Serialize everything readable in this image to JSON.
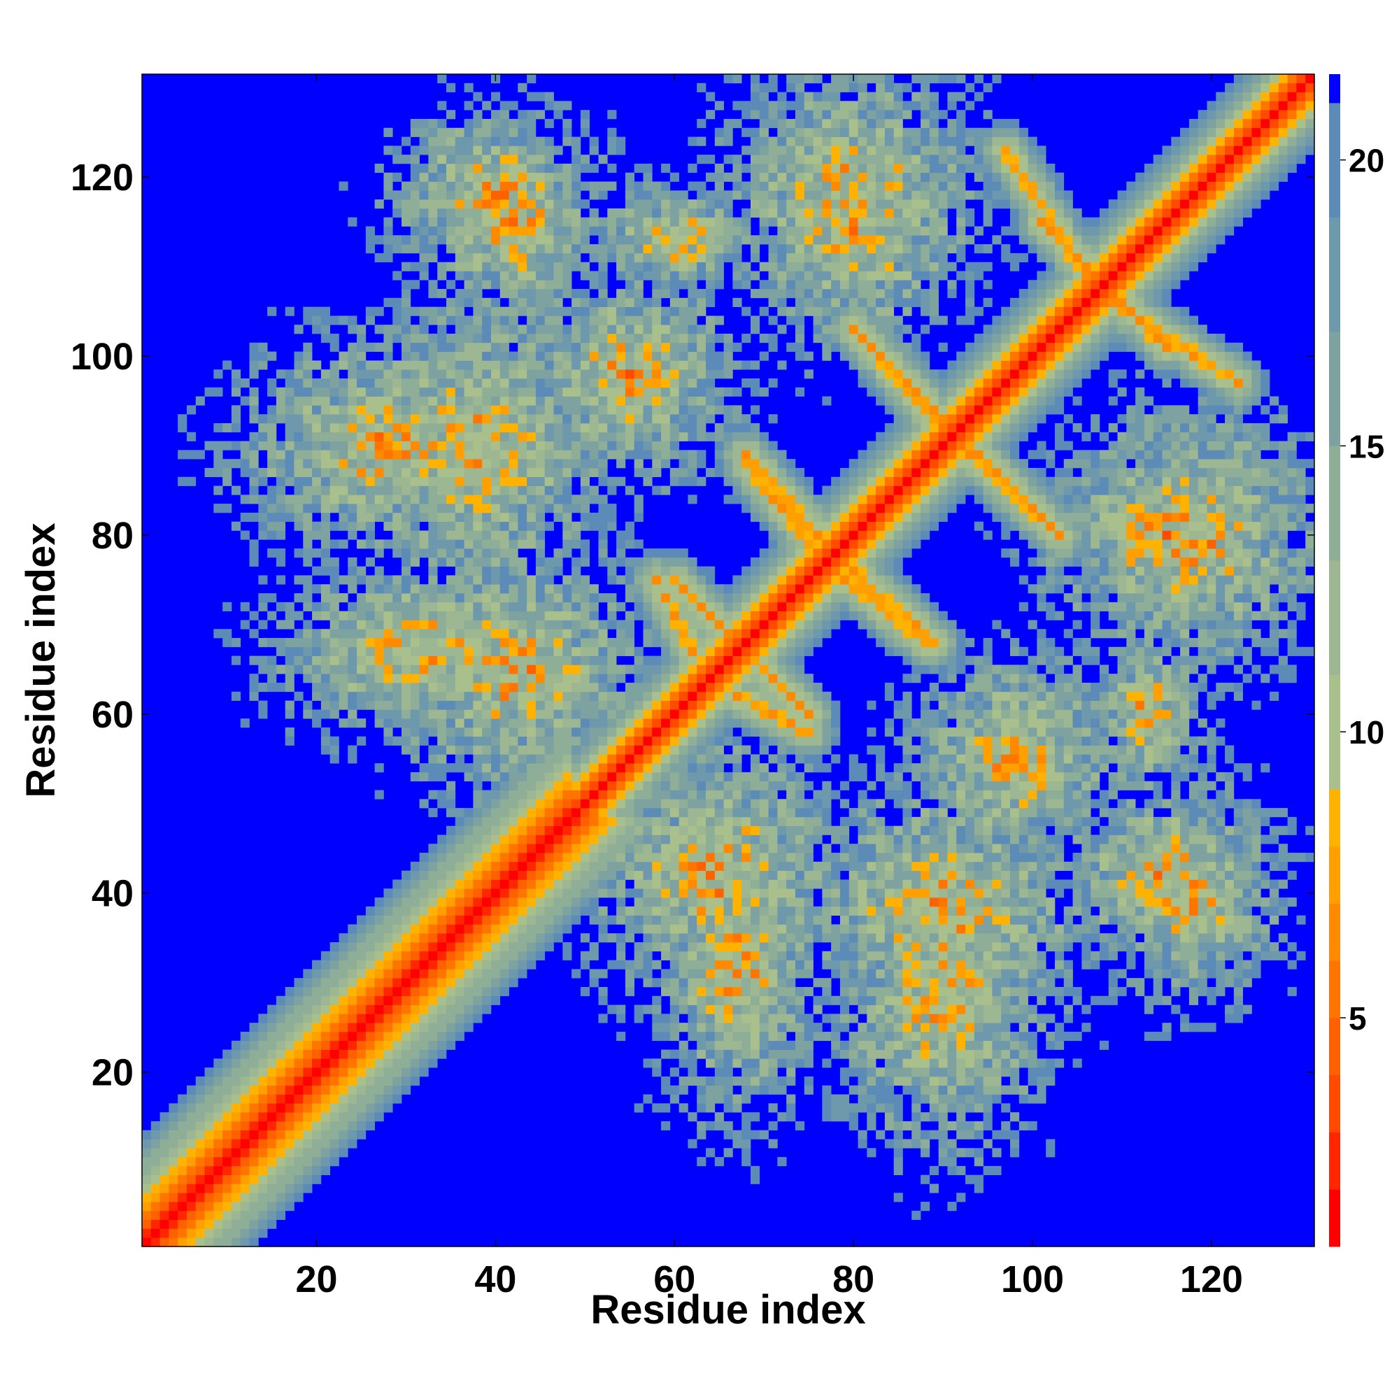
{
  "chart_data": {
    "type": "heatmap",
    "title": "",
    "xlabel": "Residue index",
    "ylabel": "Residue index",
    "xlim": [
      1,
      131
    ],
    "ylim": [
      1,
      131
    ],
    "n_residues": 131,
    "x_ticks": [
      20,
      40,
      60,
      80,
      100,
      120
    ],
    "y_ticks": [
      20,
      40,
      60,
      80,
      100,
      120
    ],
    "x_tick_labels": [
      "20",
      "40",
      "60",
      "80",
      "100",
      "120"
    ],
    "y_tick_labels": [
      "20",
      "40",
      "60",
      "80",
      "100",
      "120"
    ],
    "colorbar": {
      "range": [
        1,
        21.5
      ],
      "ticks": [
        5,
        10,
        15,
        20
      ],
      "tick_labels": [
        "5",
        "10",
        "15",
        "20"
      ],
      "levels": [
        {
          "min": 1,
          "max": 2,
          "color": "#ff0000"
        },
        {
          "min": 2,
          "max": 3,
          "color": "#ff2600"
        },
        {
          "min": 3,
          "max": 4,
          "color": "#ff4a00"
        },
        {
          "min": 4,
          "max": 5,
          "color": "#ff6100"
        },
        {
          "min": 5,
          "max": 6,
          "color": "#ff7500"
        },
        {
          "min": 6,
          "max": 7,
          "color": "#ff8a00"
        },
        {
          "min": 7,
          "max": 8,
          "color": "#ffa000"
        },
        {
          "min": 8,
          "max": 9,
          "color": "#ffb300"
        },
        {
          "min": 9,
          "max": 11,
          "color": "#a9c08d"
        },
        {
          "min": 11,
          "max": 13,
          "color": "#9db792"
        },
        {
          "min": 13,
          "max": 15,
          "color": "#8fae97"
        },
        {
          "min": 15,
          "max": 17,
          "color": "#7ea2a0"
        },
        {
          "min": 17,
          "max": 19,
          "color": "#6e98ab"
        },
        {
          "min": 19,
          "max": 21,
          "color": "#5b8bb6"
        },
        {
          "min": 21,
          "max": 21.5,
          "color": "#0000ff"
        }
      ]
    },
    "background_color": "#0000ff",
    "description_note": "",
    "structure": {
      "diagonal_contacts": "distance near 1 along i=j, widening band for residues 1-48",
      "antidiagonal_beta_contacts": [
        {
          "from": [
            60,
            75
          ],
          "to": [
            67,
            68
          ]
        },
        {
          "from": [
            67,
            62
          ],
          "to": [
            75,
            58
          ]
        },
        {
          "from": [
            68,
            89
          ],
          "to": [
            76,
            80
          ]
        },
        {
          "from": [
            78,
            76
          ],
          "to": [
            88,
            68
          ]
        },
        {
          "from": [
            80,
            103
          ],
          "to": [
            90,
            93
          ]
        },
        {
          "from": [
            92,
            90
          ],
          "to": [
            103,
            80
          ]
        },
        {
          "from": [
            101,
            115
          ],
          "to": [
            108,
            108
          ]
        },
        {
          "from": [
            109,
            106
          ],
          "to": [
            123,
            97
          ]
        }
      ],
      "contact_clusters": [
        {
          "cx": 28,
          "cy": 90,
          "rx": 14,
          "ry": 10
        },
        {
          "cx": 32,
          "cy": 67,
          "rx": 14,
          "ry": 8
        },
        {
          "cx": 40,
          "cy": 118,
          "rx": 10,
          "ry": 8
        },
        {
          "cx": 65,
          "cy": 42,
          "rx": 12,
          "ry": 12
        },
        {
          "cx": 90,
          "cy": 38,
          "rx": 14,
          "ry": 12
        },
        {
          "cx": 115,
          "cy": 42,
          "rx": 10,
          "ry": 8
        },
        {
          "cx": 115,
          "cy": 80,
          "rx": 12,
          "ry": 10
        },
        {
          "cx": 80,
          "cy": 118,
          "rx": 12,
          "ry": 12
        },
        {
          "cx": 55,
          "cy": 98,
          "rx": 10,
          "ry": 10
        },
        {
          "cx": 60,
          "cy": 113,
          "rx": 8,
          "ry": 5
        }
      ]
    }
  }
}
